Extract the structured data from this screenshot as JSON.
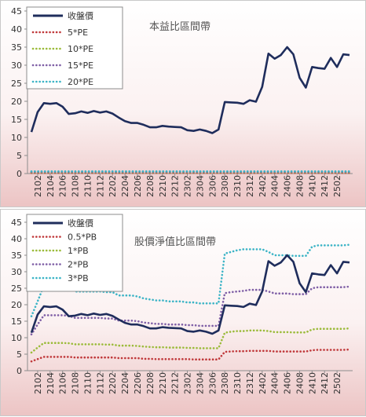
{
  "chart_data": [
    {
      "type": "line",
      "title": "本益比區間帶",
      "xlabel": "",
      "ylabel": "",
      "ylim": [
        0,
        45
      ],
      "yticks": [
        0,
        5,
        10,
        15,
        20,
        25,
        30,
        35,
        40,
        45
      ],
      "x_tick_labels": [
        "2102",
        "2104",
        "2106",
        "2108",
        "2110",
        "2112",
        "2202",
        "2204",
        "2206",
        "2208",
        "2210",
        "2212",
        "2302",
        "2304",
        "2306",
        "2308",
        "2310",
        "2312",
        "2402",
        "2404",
        "2406",
        "2408",
        "2410",
        "2412",
        "2502"
      ],
      "grid": false,
      "legend_placement": "top-left",
      "colors": {
        "price": "#1f2d5c",
        "band1": "#c0393b",
        "band2": "#9bbb3a",
        "band3": "#7f5fa6",
        "band4": "#3cb4c6"
      },
      "series": [
        {
          "name": "收盤價",
          "style": "solid",
          "values": [
            11.5,
            17,
            19.5,
            19.3,
            19.5,
            18.5,
            16.5,
            16.7,
            17.2,
            16.8,
            17.3,
            16.9,
            17.2,
            16.6,
            15.5,
            14.5,
            14.0,
            14.0,
            13.5,
            12.8,
            12.8,
            13.2,
            13.0,
            12.9,
            12.8,
            12.0,
            11.8,
            12.2,
            11.8,
            11.2,
            12.2,
            19.8,
            19.7,
            19.6,
            19.3,
            20.3,
            19.9,
            24.0,
            33.2,
            31.8,
            32.8,
            35.0,
            33.0,
            26.5,
            23.8,
            29.5,
            29.2,
            29.0,
            32.0,
            29.5,
            33.0,
            32.8
          ]
        },
        {
          "name": "5*PE",
          "style": "dotted",
          "values": [
            0.2,
            0.2,
            0.2,
            0.2,
            0.2,
            0.2,
            0.2,
            0.2,
            0.2,
            0.2,
            0.2,
            0.2,
            0.2,
            0.2,
            0.2,
            0.2,
            0.2,
            0.2,
            0.2,
            0.2,
            0.2,
            0.2,
            0.2,
            0.2,
            0.2,
            0.2,
            0.2,
            0.2,
            0.2,
            0.2,
            0.2,
            0.2,
            0.2,
            0.2,
            0.2,
            0.2,
            0.2,
            0.2,
            0.2,
            0.2,
            0.2,
            0.2,
            0.2,
            0.2,
            0.2,
            0.2,
            0.2,
            0.2,
            0.2,
            0.2,
            0.2,
            0.2
          ]
        },
        {
          "name": "10*PE",
          "style": "dotted",
          "values": [
            0.4,
            0.4,
            0.4,
            0.4,
            0.4,
            0.4,
            0.4,
            0.4,
            0.4,
            0.4,
            0.4,
            0.4,
            0.4,
            0.4,
            0.4,
            0.4,
            0.4,
            0.4,
            0.4,
            0.4,
            0.4,
            0.4,
            0.4,
            0.4,
            0.4,
            0.4,
            0.4,
            0.4,
            0.4,
            0.4,
            0.4,
            0.4,
            0.4,
            0.4,
            0.4,
            0.4,
            0.4,
            0.4,
            0.4,
            0.4,
            0.4,
            0.4,
            0.4,
            0.4,
            0.4,
            0.4,
            0.4,
            0.4,
            0.4,
            0.4,
            0.4,
            0.4
          ]
        },
        {
          "name": "15*PE",
          "style": "dotted",
          "values": [
            0.5,
            0.5,
            0.5,
            0.5,
            0.5,
            0.5,
            0.5,
            0.5,
            0.5,
            0.5,
            0.5,
            0.5,
            0.5,
            0.5,
            0.5,
            0.5,
            0.5,
            0.5,
            0.5,
            0.5,
            0.5,
            0.5,
            0.5,
            0.5,
            0.5,
            0.5,
            0.5,
            0.5,
            0.5,
            0.5,
            0.5,
            0.5,
            0.5,
            0.5,
            0.5,
            0.5,
            0.5,
            0.5,
            0.5,
            0.5,
            0.5,
            0.5,
            0.5,
            0.5,
            0.5,
            0.5,
            0.5,
            0.5,
            0.5,
            0.5,
            0.5,
            0.5
          ]
        },
        {
          "name": "20*PE",
          "style": "dotted",
          "values": [
            0.6,
            0.6,
            0.6,
            0.6,
            0.6,
            0.6,
            0.6,
            0.6,
            0.6,
            0.6,
            0.6,
            0.6,
            0.6,
            0.6,
            0.6,
            0.6,
            0.6,
            0.6,
            0.6,
            0.6,
            0.6,
            0.6,
            0.6,
            0.6,
            0.6,
            0.6,
            0.6,
            0.6,
            0.6,
            0.6,
            0.6,
            0.6,
            0.6,
            0.6,
            0.6,
            0.6,
            0.6,
            0.6,
            0.6,
            0.6,
            0.6,
            0.6,
            0.6,
            0.6,
            0.6,
            0.6,
            0.6,
            0.6,
            0.6,
            0.6,
            0.6,
            0.6
          ]
        }
      ]
    },
    {
      "type": "line",
      "title": "股價淨值比區間帶",
      "xlabel": "",
      "ylabel": "",
      "ylim": [
        0,
        45
      ],
      "yticks": [
        0,
        5,
        10,
        15,
        20,
        25,
        30,
        35,
        40,
        45
      ],
      "x_tick_labels": [
        "2102",
        "2104",
        "2106",
        "2108",
        "2110",
        "2112",
        "2202",
        "2204",
        "2206",
        "2208",
        "2210",
        "2212",
        "2302",
        "2304",
        "2306",
        "2308",
        "2310",
        "2312",
        "2402",
        "2404",
        "2406",
        "2408",
        "2410",
        "2412",
        "2502"
      ],
      "grid": false,
      "legend_placement": "top-left",
      "colors": {
        "price": "#1f2d5c",
        "band1": "#c0393b",
        "band2": "#9bbb3a",
        "band3": "#7f5fa6",
        "band4": "#3cb4c6"
      },
      "series": [
        {
          "name": "收盤價",
          "style": "solid",
          "values": [
            11.5,
            17,
            19.5,
            19.3,
            19.5,
            18.5,
            16.5,
            16.7,
            17.2,
            16.8,
            17.3,
            16.9,
            17.2,
            16.6,
            15.5,
            14.5,
            14.0,
            14.0,
            13.5,
            12.8,
            12.8,
            13.2,
            13.0,
            12.9,
            12.8,
            12.0,
            11.8,
            12.2,
            11.8,
            11.2,
            12.2,
            19.8,
            19.7,
            19.6,
            19.3,
            20.3,
            19.9,
            24.0,
            33.2,
            31.8,
            32.8,
            35.0,
            33.0,
            26.5,
            23.8,
            29.5,
            29.2,
            29.0,
            32.0,
            29.5,
            33.0,
            32.8
          ]
        },
        {
          "name": "0.5*PB",
          "style": "dotted",
          "values": [
            2.8,
            3.5,
            4.2,
            4.2,
            4.2,
            4.2,
            4.2,
            4.0,
            4.0,
            4.0,
            4.0,
            4.0,
            4.0,
            4.0,
            3.8,
            3.8,
            3.8,
            3.8,
            3.6,
            3.6,
            3.5,
            3.5,
            3.5,
            3.5,
            3.5,
            3.5,
            3.4,
            3.4,
            3.4,
            3.4,
            3.4,
            5.7,
            5.8,
            5.9,
            5.9,
            6.0,
            6.0,
            6.0,
            6.0,
            5.8,
            5.8,
            5.8,
            5.8,
            5.8,
            5.8,
            6.2,
            6.3,
            6.3,
            6.3,
            6.3,
            6.3,
            6.4
          ]
        },
        {
          "name": "1*PB",
          "style": "dotted",
          "values": [
            5.5,
            7.0,
            8.4,
            8.4,
            8.4,
            8.4,
            8.3,
            8.0,
            8.0,
            8.0,
            8.0,
            8.0,
            7.9,
            7.9,
            7.6,
            7.6,
            7.6,
            7.5,
            7.3,
            7.2,
            7.1,
            7.1,
            7.0,
            7.0,
            7.0,
            6.9,
            6.9,
            6.8,
            6.8,
            6.8,
            6.8,
            11.5,
            11.8,
            12.0,
            12.0,
            12.2,
            12.2,
            12.2,
            12.0,
            11.7,
            11.7,
            11.7,
            11.6,
            11.6,
            11.6,
            12.5,
            12.7,
            12.7,
            12.7,
            12.7,
            12.7,
            12.8
          ]
        },
        {
          "name": "2*PB",
          "style": "dotted",
          "values": [
            11.0,
            14.0,
            16.8,
            16.8,
            16.8,
            16.8,
            16.6,
            16.0,
            16.0,
            16.0,
            16.0,
            16.0,
            15.8,
            15.8,
            15.2,
            15.2,
            15.2,
            15.0,
            14.6,
            14.4,
            14.2,
            14.2,
            14.0,
            14.0,
            14.0,
            13.8,
            13.8,
            13.6,
            13.6,
            13.6,
            13.6,
            23.5,
            23.8,
            24.0,
            24.2,
            24.5,
            24.5,
            24.5,
            24.0,
            23.4,
            23.4,
            23.4,
            23.2,
            23.2,
            23.2,
            25.0,
            25.3,
            25.3,
            25.3,
            25.3,
            25.3,
            25.5
          ]
        },
        {
          "name": "3*PB",
          "style": "dotted",
          "values": [
            16.5,
            21.0,
            25.8,
            25.8,
            25.8,
            25.8,
            25.5,
            24.0,
            24.0,
            24.0,
            24.0,
            24.0,
            23.8,
            23.8,
            22.8,
            22.8,
            22.8,
            22.5,
            21.9,
            21.6,
            21.3,
            21.3,
            21.0,
            21.0,
            21.0,
            20.7,
            20.7,
            20.4,
            20.4,
            20.4,
            20.4,
            35.5,
            36.0,
            36.5,
            36.8,
            36.8,
            36.8,
            36.8,
            36.0,
            35.0,
            35.0,
            35.0,
            34.8,
            34.8,
            34.8,
            37.6,
            38.0,
            38.0,
            38.0,
            38.0,
            38.0,
            38.2
          ]
        }
      ]
    }
  ]
}
